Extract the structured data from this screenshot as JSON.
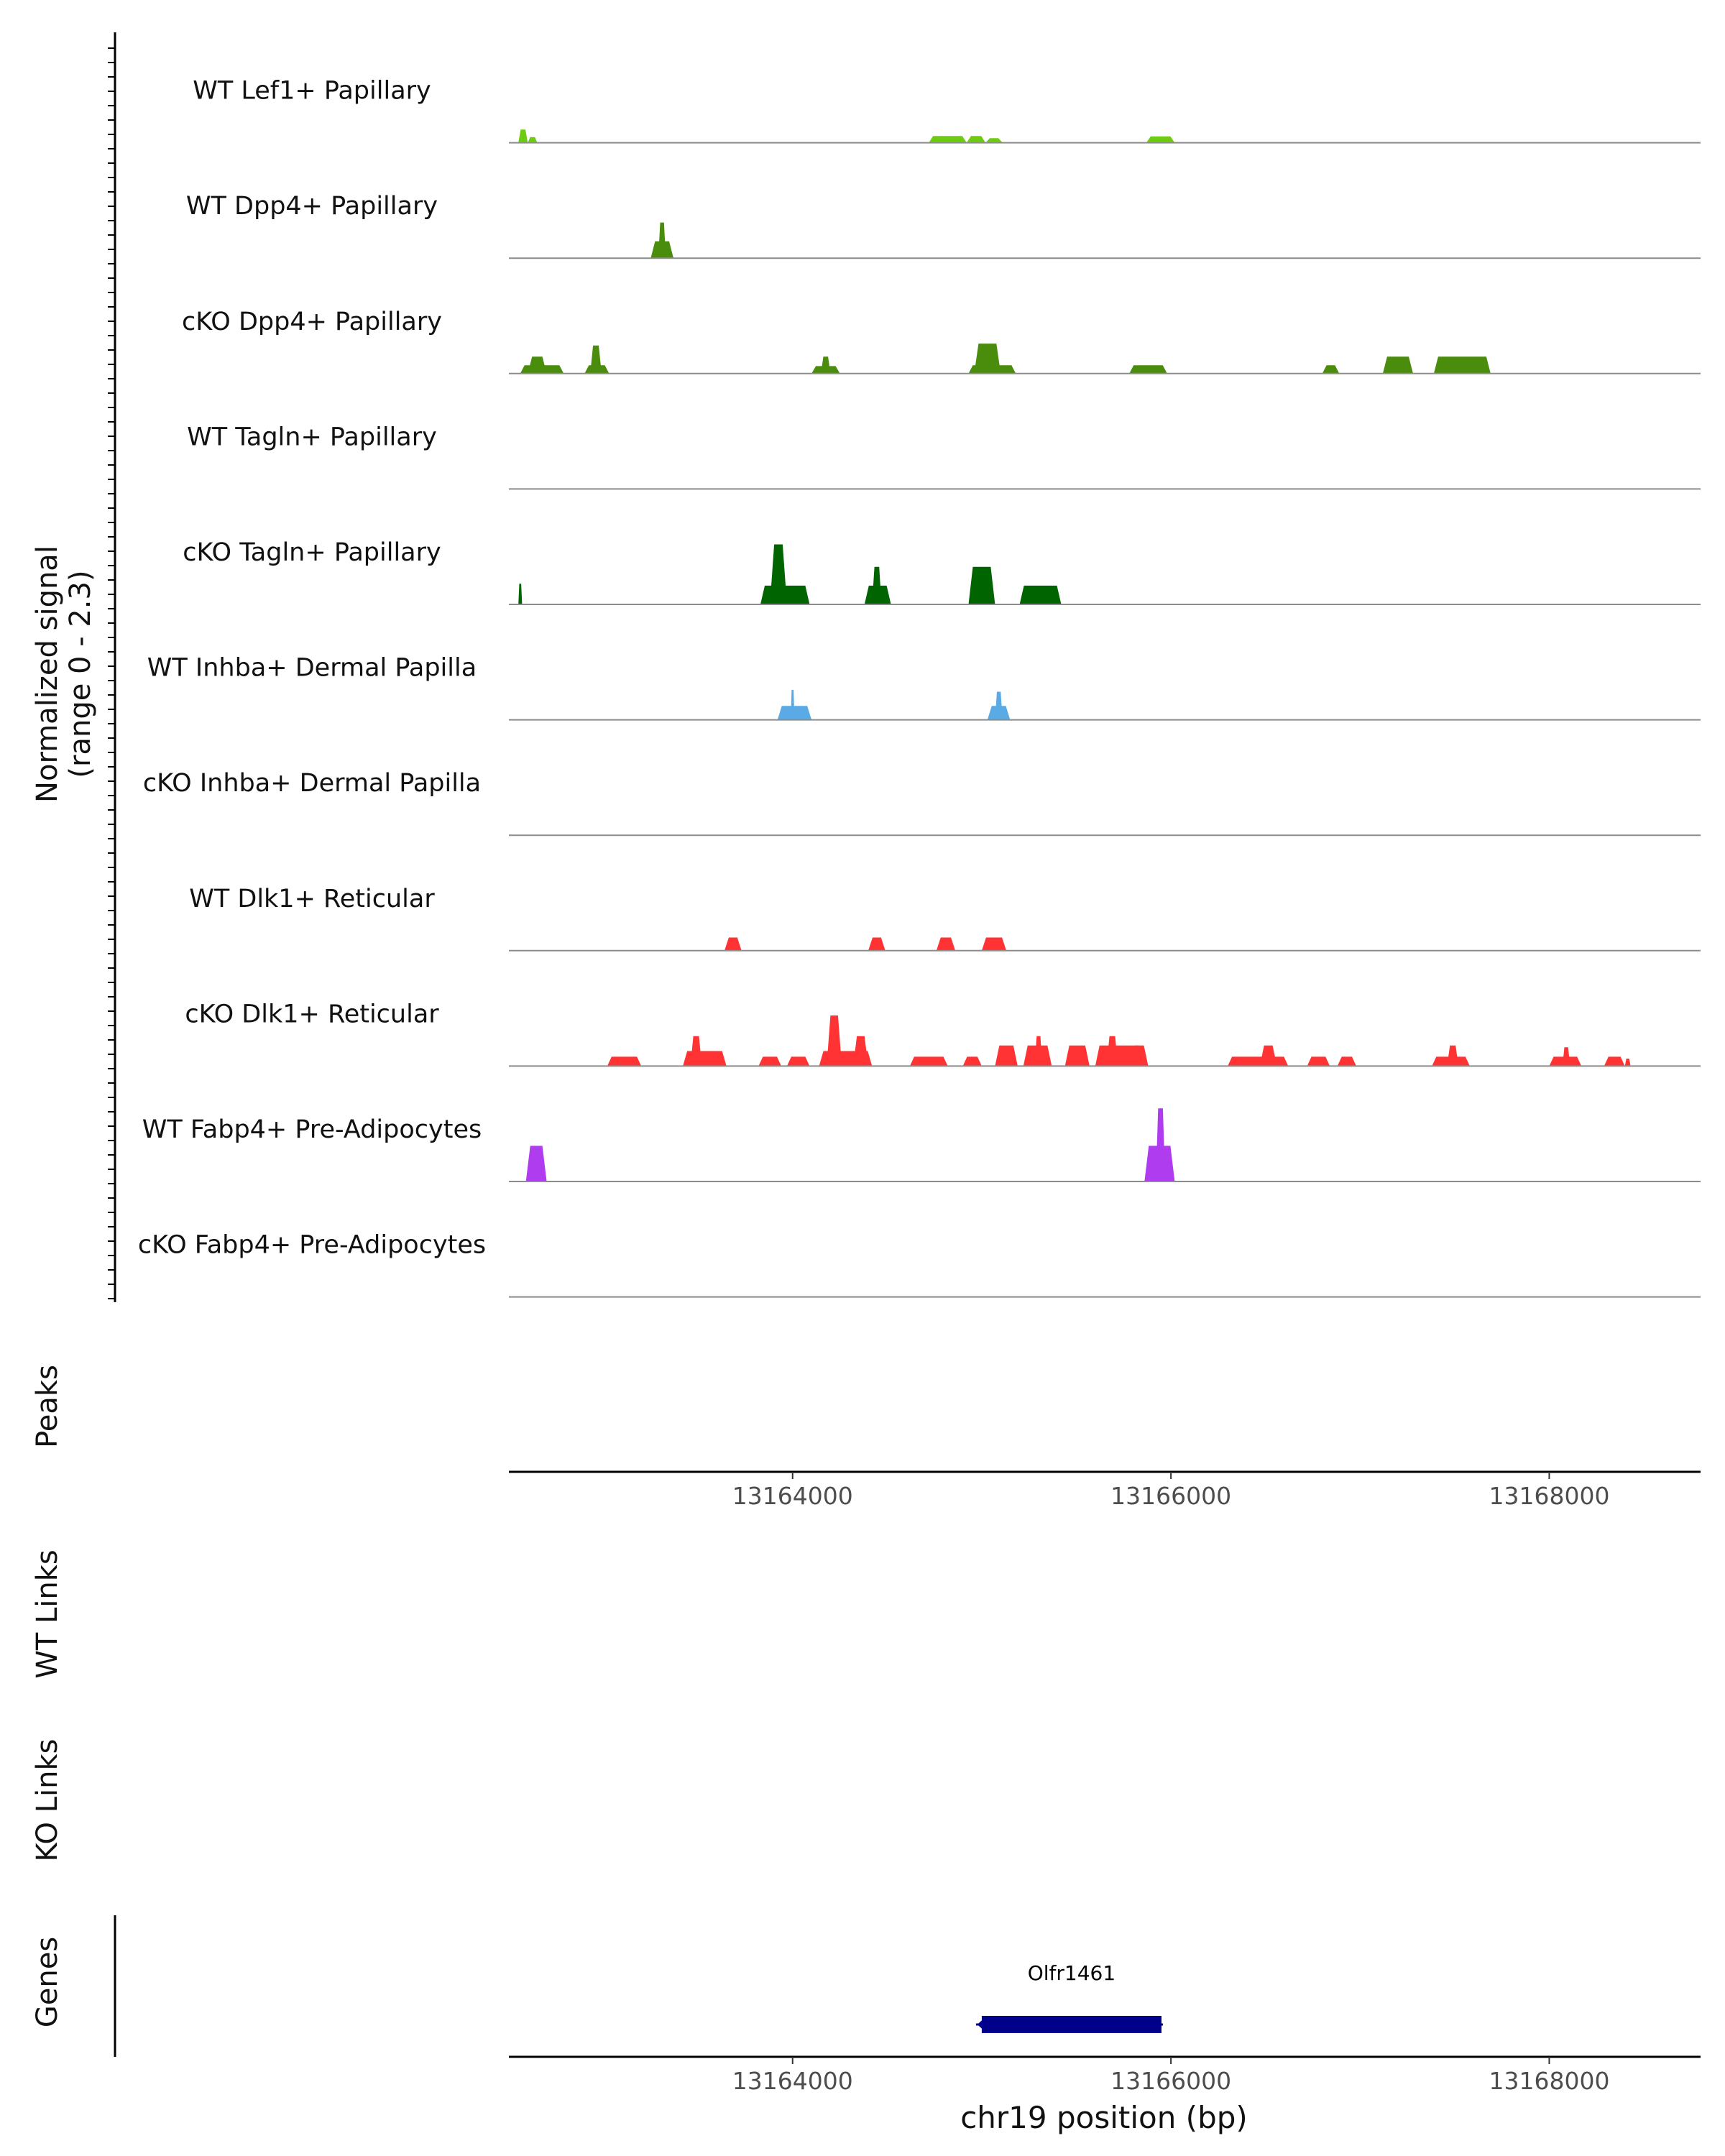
{
  "chart_data": {
    "type": "area",
    "title": "",
    "ylabel_line1": "Normalized signal",
    "ylabel_line2": "(range 0 - 2.3)",
    "xlabel": "chr19 position (bp)",
    "xlim": [
      13162500,
      13168800
    ],
    "ylim": [
      0,
      2.3
    ],
    "xticks": [
      13164000,
      13166000,
      13168000
    ],
    "xtick_labels": [
      "13164000",
      "13166000",
      "13168000"
    ],
    "section_labels": {
      "peaks": "Peaks",
      "wt_links": "WT Links",
      "ko_links": "KO Links",
      "genes": "Genes"
    },
    "series": [
      {
        "name": "WT Lef1+ Papillary",
        "color": "#6ecb12",
        "peaks": [
          [
            13162550,
            13162600,
            0.35
          ],
          [
            13162600,
            13162650,
            0.15
          ],
          [
            13164720,
            13164920,
            0.18
          ],
          [
            13164920,
            13165020,
            0.18
          ],
          [
            13165020,
            13165110,
            0.12
          ],
          [
            13165870,
            13166020,
            0.17
          ]
        ]
      },
      {
        "name": "WT Dpp4+ Papillary",
        "color": "#4a8c0c",
        "peaks": [
          [
            13163250,
            13163370,
            0.45
          ],
          [
            13163290,
            13163330,
            0.95
          ]
        ]
      },
      {
        "name": "cKO Dpp4+ Papillary",
        "color": "#4a8c0c",
        "peaks": [
          [
            13162560,
            13162790,
            0.22
          ],
          [
            13162600,
            13162700,
            0.45
          ],
          [
            13162900,
            13163030,
            0.22
          ],
          [
            13162930,
            13162990,
            0.75
          ],
          [
            13164100,
            13164250,
            0.2
          ],
          [
            13164150,
            13164200,
            0.45
          ],
          [
            13164930,
            13165180,
            0.22
          ],
          [
            13164960,
            13165100,
            0.8
          ],
          [
            13165780,
            13165980,
            0.22
          ],
          [
            13166800,
            13166890,
            0.22
          ],
          [
            13167120,
            13167280,
            0.45
          ],
          [
            13167390,
            13167690,
            0.45
          ]
        ]
      },
      {
        "name": "WT Tagln+ Papillary",
        "color": "#006400",
        "peaks": []
      },
      {
        "name": "cKO Tagln+ Papillary",
        "color": "#006400",
        "peaks": [
          [
            13162550,
            13162570,
            0.55
          ],
          [
            13163830,
            13164090,
            0.5
          ],
          [
            13163880,
            13163970,
            1.6
          ],
          [
            13164380,
            13164520,
            0.5
          ],
          [
            13164420,
            13164470,
            1.0
          ],
          [
            13164930,
            13165070,
            1.0
          ],
          [
            13165200,
            13165420,
            0.5
          ]
        ]
      },
      {
        "name": "WT Inhba+ Dermal Papilla",
        "color": "#5aaae6",
        "peaks": [
          [
            13163920,
            13164100,
            0.37
          ],
          [
            13163990,
            13164010,
            0.8
          ],
          [
            13165030,
            13165150,
            0.37
          ],
          [
            13165070,
            13165110,
            0.75
          ]
        ]
      },
      {
        "name": "cKO Inhba+ Dermal Papilla",
        "color": "#5aaae6",
        "peaks": []
      },
      {
        "name": "WT Dlk1+ Reticular",
        "color": "#ff3333",
        "peaks": [
          [
            13163640,
            13163730,
            0.35
          ],
          [
            13164400,
            13164490,
            0.35
          ],
          [
            13164760,
            13164860,
            0.35
          ],
          [
            13165000,
            13165130,
            0.35
          ]
        ]
      },
      {
        "name": "cKO Dlk1+ Reticular",
        "color": "#ff3333",
        "peaks": [
          [
            13163020,
            13163200,
            0.25
          ],
          [
            13163420,
            13163650,
            0.4
          ],
          [
            13163460,
            13163520,
            0.8
          ],
          [
            13163820,
            13163940,
            0.25
          ],
          [
            13163970,
            13164090,
            0.25
          ],
          [
            13164140,
            13164420,
            0.4
          ],
          [
            13164180,
            13164260,
            1.35
          ],
          [
            13164320,
            13164400,
            0.8
          ],
          [
            13164620,
            13164820,
            0.25
          ],
          [
            13164900,
            13165000,
            0.25
          ],
          [
            13165070,
            13165190,
            0.55
          ],
          [
            13165220,
            13165370,
            0.55
          ],
          [
            13165280,
            13165320,
            0.8
          ],
          [
            13165440,
            13165570,
            0.55
          ],
          [
            13165600,
            13165880,
            0.55
          ],
          [
            13165660,
            13165720,
            0.8
          ],
          [
            13165800,
            13165840,
            0.55
          ],
          [
            13166300,
            13166620,
            0.25
          ],
          [
            13166470,
            13166560,
            0.55
          ],
          [
            13166720,
            13166840,
            0.25
          ],
          [
            13166880,
            13166980,
            0.25
          ],
          [
            13167380,
            13167580,
            0.25
          ],
          [
            13167460,
            13167520,
            0.55
          ],
          [
            13168000,
            13168170,
            0.25
          ],
          [
            13168070,
            13168110,
            0.5
          ],
          [
            13168290,
            13168400,
            0.25
          ],
          [
            13168400,
            13168430,
            0.2
          ]
        ]
      },
      {
        "name": "WT Fabp4+ Pre-Adipocytes",
        "color": "#b03cef",
        "peaks": [
          [
            13162590,
            13162700,
            0.95
          ],
          [
            13165860,
            13166020,
            0.95
          ],
          [
            13165920,
            13165970,
            1.95
          ]
        ]
      },
      {
        "name": "cKO Fabp4+ Pre-Adipocytes",
        "color": "#b03cef",
        "peaks": []
      }
    ],
    "genes": [
      {
        "name": "Olfr1461",
        "start": 13165000,
        "end": 13165950,
        "strand": "-",
        "color": "#00008b"
      }
    ]
  }
}
